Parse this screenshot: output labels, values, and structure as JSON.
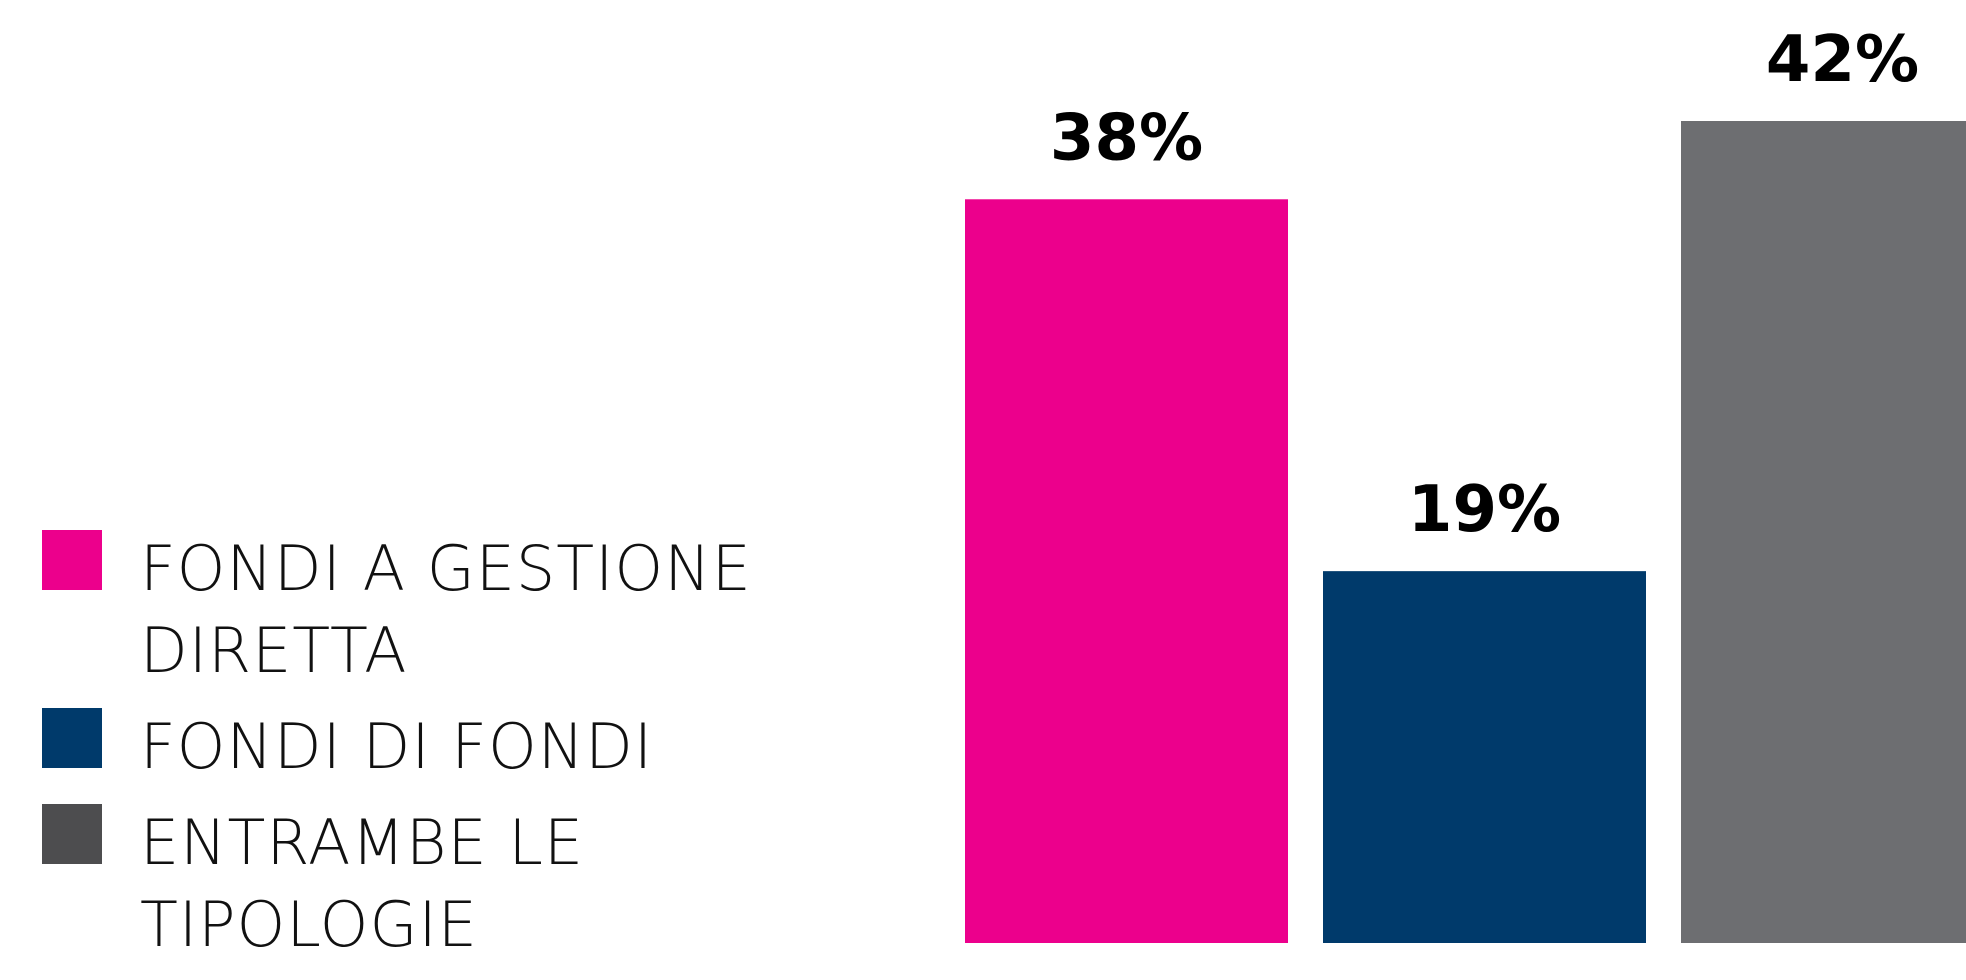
{
  "chart_data": {
    "type": "bar",
    "categories": [
      "FONDI A GESTIONE DIRETTA",
      "FONDI DI FONDI",
      "ENTRAMBE LE TIPOLOGIE"
    ],
    "values": [
      38,
      19,
      42
    ],
    "value_labels": [
      "38%",
      "19%",
      "42%"
    ],
    "colors": [
      "#ec008c",
      "#003a6b",
      "#6d6e71"
    ],
    "legend_colors": [
      "#ec008c",
      "#003a6b",
      "#4d4d4f"
    ],
    "title": "",
    "xlabel": "",
    "ylabel": "",
    "ylim": [
      0,
      42
    ],
    "grid": false,
    "legend_position": "left",
    "legend": [
      {
        "label": "FONDI A GESTIONE DIRETTA",
        "color": "#ec008c"
      },
      {
        "label": "FONDI DI FONDI",
        "color": "#003a6b"
      },
      {
        "label": "ENTRAMBE LE TIPOLOGIE",
        "color": "#4d4d4f"
      }
    ]
  }
}
